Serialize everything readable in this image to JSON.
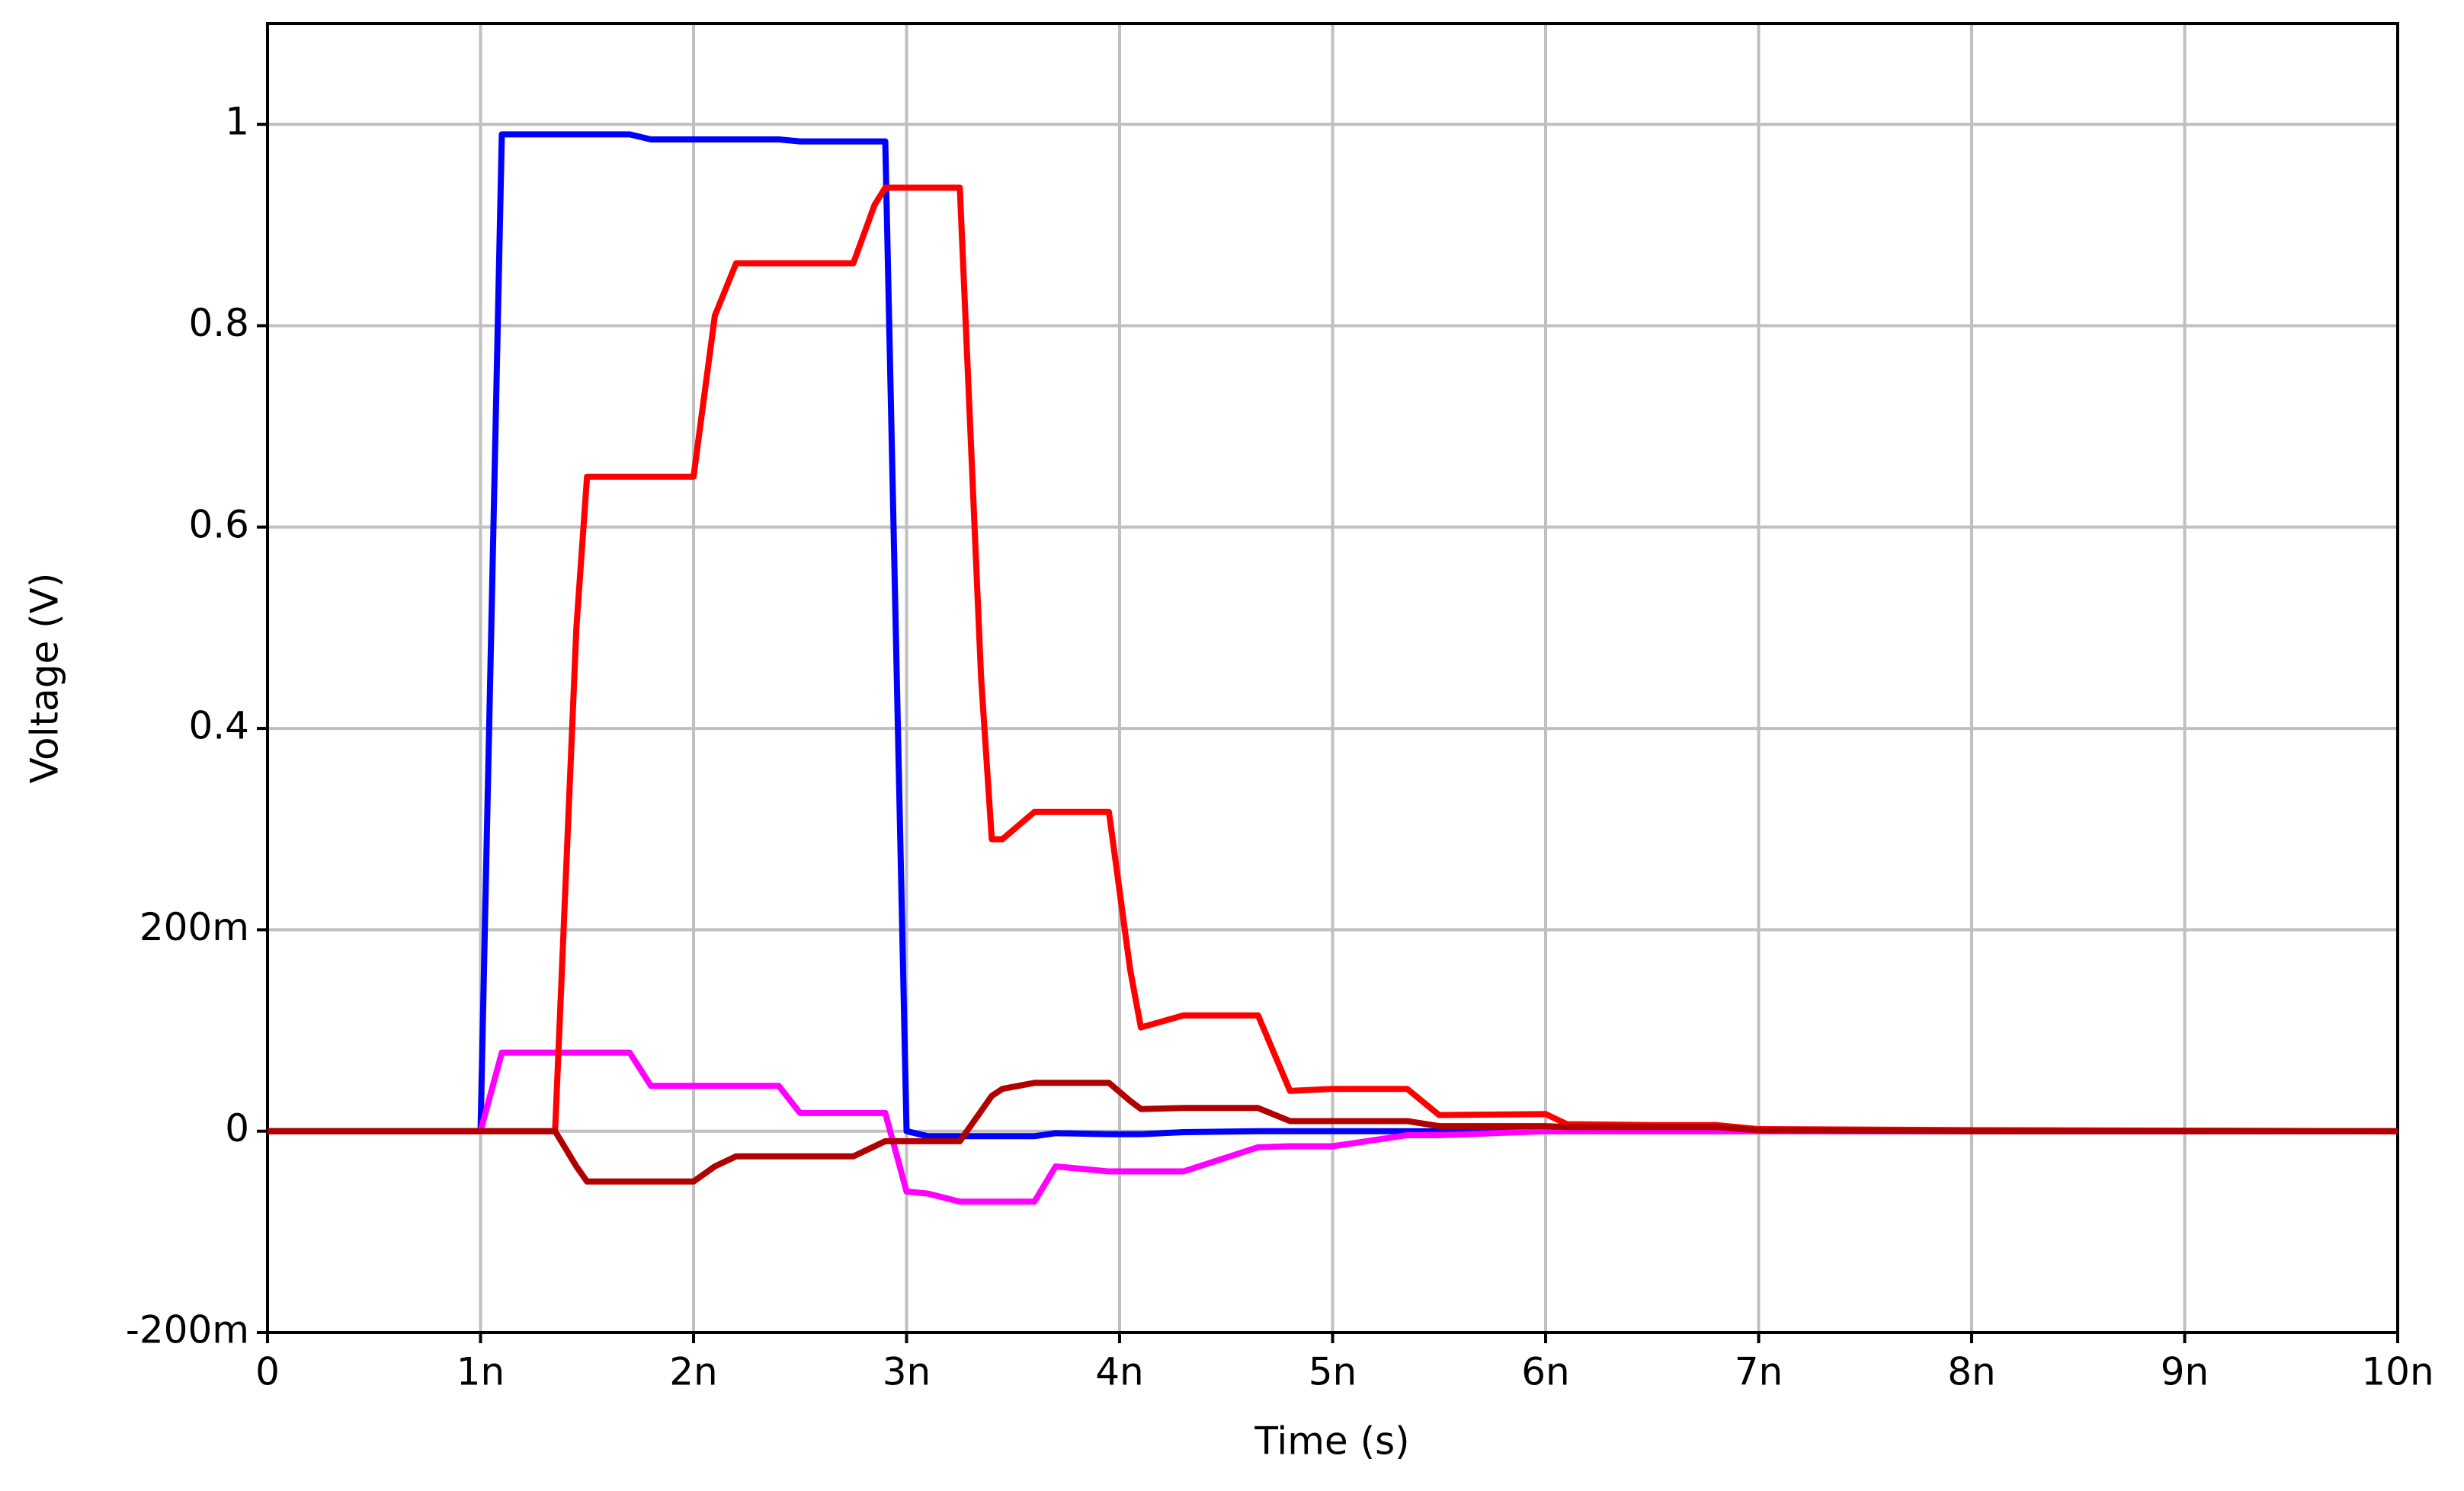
{
  "chart_data": {
    "type": "line",
    "xlabel": "Time (s)",
    "ylabel": "Voltage (V)",
    "x": [
      0,
      1e-09,
      1.1e-09,
      1.35e-09,
      1.45e-09,
      1.5e-09,
      1.7e-09,
      1.8e-09,
      2e-09,
      2.1e-09,
      2.2e-09,
      2.4e-09,
      2.5e-09,
      2.75e-09,
      2.85e-09,
      2.9e-09,
      3e-09,
      3.1e-09,
      3.25e-09,
      3.35e-09,
      3.4e-09,
      3.45e-09,
      3.6e-09,
      3.7e-09,
      3.95e-09,
      4.05e-09,
      4.1e-09,
      4.3e-09,
      4.65e-09,
      4.8e-09,
      5e-09,
      5.35e-09,
      5.5e-09,
      6e-09,
      6.1e-09,
      6.5e-09,
      6.8e-09,
      7e-09,
      8e-09,
      1e-08
    ],
    "series": [
      {
        "color": "#0000ff",
        "values": [
          0,
          0,
          0.99,
          0.99,
          0.99,
          0.99,
          0.99,
          0.985,
          0.985,
          0.985,
          0.985,
          0.985,
          0.983,
          0.983,
          0.983,
          0.983,
          0,
          -0.005,
          -0.005,
          -0.005,
          -0.005,
          -0.005,
          -0.005,
          -0.002,
          -0.003,
          -0.003,
          -0.003,
          -0.001,
          0,
          0,
          0,
          0,
          0,
          0,
          0,
          0,
          0,
          0,
          0,
          0
        ]
      },
      {
        "color": "#ff00ff",
        "values": [
          0,
          0,
          0.078,
          0.078,
          0.078,
          0.078,
          0.078,
          0.045,
          0.045,
          0.045,
          0.045,
          0.045,
          0.018,
          0.018,
          0.018,
          0.018,
          -0.06,
          -0.062,
          -0.07,
          -0.07,
          -0.07,
          -0.07,
          -0.07,
          -0.035,
          -0.04,
          -0.04,
          -0.04,
          -0.04,
          -0.016,
          -0.015,
          -0.015,
          -0.004,
          -0.004,
          0,
          0,
          0,
          0,
          0,
          0,
          0
        ]
      },
      {
        "color": "#ff0000",
        "values": [
          0,
          0,
          0,
          0,
          0.5,
          0.65,
          0.65,
          0.65,
          0.65,
          0.81,
          0.862,
          0.862,
          0.862,
          0.862,
          0.92,
          0.937,
          0.937,
          0.937,
          0.937,
          0.45,
          0.29,
          0.29,
          0.317,
          0.317,
          0.317,
          0.16,
          0.103,
          0.115,
          0.115,
          0.04,
          0.042,
          0.042,
          0.016,
          0.017,
          0.007,
          0.006,
          0.006,
          0.002,
          0.001,
          0
        ]
      },
      {
        "color": "#b00000",
        "values": [
          0,
          0,
          0,
          0,
          -0.035,
          -0.05,
          -0.05,
          -0.05,
          -0.05,
          -0.035,
          -0.025,
          -0.025,
          -0.025,
          -0.025,
          -0.015,
          -0.01,
          -0.01,
          -0.01,
          -0.01,
          0.02,
          0.035,
          0.042,
          0.048,
          0.048,
          0.048,
          0.03,
          0.022,
          0.023,
          0.023,
          0.01,
          0.01,
          0.01,
          0.005,
          0.005,
          0.004,
          0.004,
          0.004,
          0.001,
          0,
          0
        ]
      }
    ],
    "xlim": [
      0,
      1e-08
    ],
    "xticks": [
      0,
      {
        "value": 1e-09,
        "label": "1n"
      },
      {
        "value": 2e-09,
        "label": "2n"
      },
      {
        "value": 3e-09,
        "label": "3n"
      },
      {
        "value": 4e-09,
        "label": "4n"
      },
      {
        "value": 5e-09,
        "label": "5n"
      },
      {
        "value": 6e-09,
        "label": "6n"
      },
      {
        "value": 7e-09,
        "label": "7n"
      },
      {
        "value": 8e-09,
        "label": "8n"
      },
      {
        "value": 9e-09,
        "label": "9n"
      },
      {
        "value": 1e-08,
        "label": "10n"
      }
    ],
    "ylim": [
      -0.2,
      1.1
    ],
    "yticks": [
      {
        "value": -0.2,
        "label": "-200m"
      },
      0,
      {
        "value": 0.2,
        "label": "200m"
      },
      0.4,
      0.6,
      0.8,
      1
    ],
    "grid": true
  }
}
